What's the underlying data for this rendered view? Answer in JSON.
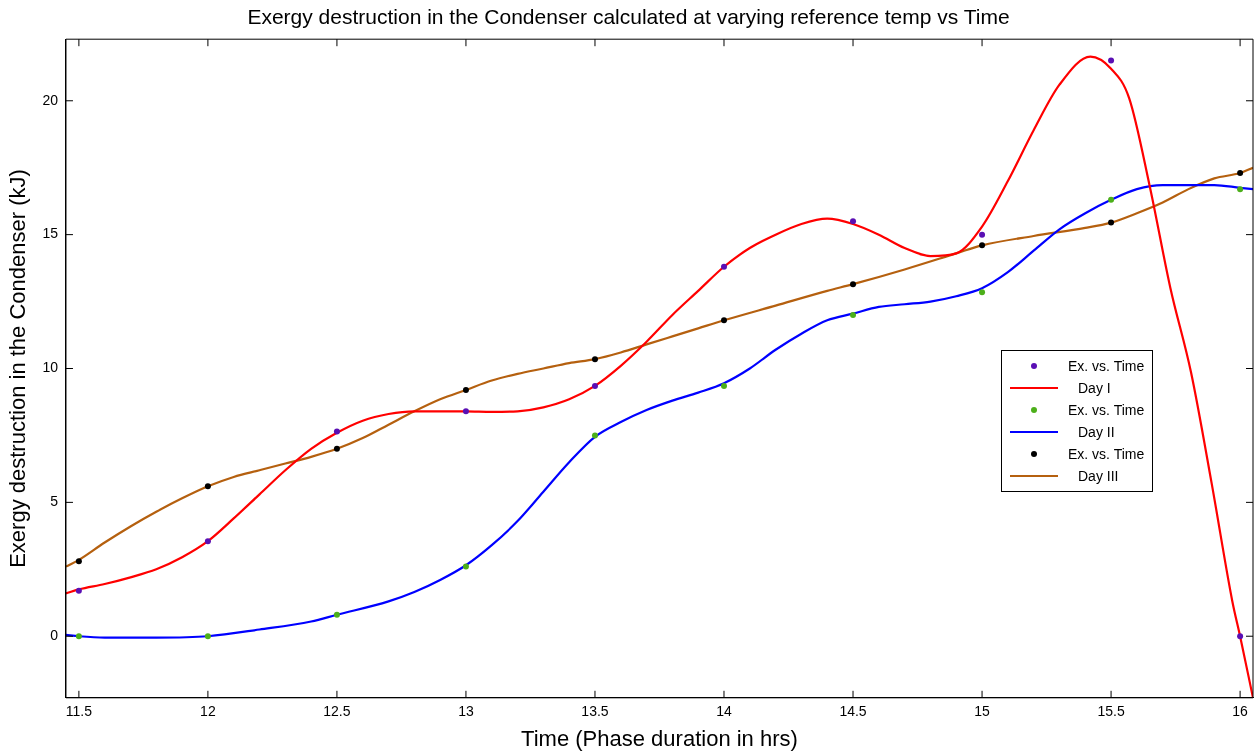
{
  "chart_data": {
    "type": "line",
    "title": "Exergy destruction in the Condenser calculated at varying reference temp vs Time",
    "xlabel": "Time (Phase duration in hrs)",
    "ylabel": "Exergy destruction in the Condenser (kJ)",
    "xlim": [
      11.45,
      16.05
    ],
    "ylim": [
      -2.3,
      22.3
    ],
    "xticks": [
      11.5,
      12,
      12.5,
      13,
      13.5,
      14,
      14.5,
      15,
      15.5,
      16
    ],
    "yticks": [
      0,
      5,
      10,
      15,
      20
    ],
    "grid": false,
    "legend": "right",
    "marker": "none",
    "line_style": "solid",
    "series": [
      {
        "name": "Ex. vs. Time",
        "type": "scatter",
        "marker": "circle",
        "color": "#5a0fb4",
        "x": [
          11.5,
          12,
          12.5,
          13,
          13.5,
          14,
          14.5,
          15,
          15.5,
          16
        ],
        "values": [
          1.7,
          3.55,
          7.65,
          8.4,
          9.35,
          13.8,
          15.5,
          15.0,
          21.5,
          0
        ]
      },
      {
        "name": "Day I",
        "color": "#ff0000",
        "x": [
          11.45,
          11.5,
          11.6,
          11.7,
          11.8,
          11.9,
          12,
          12.1,
          12.2,
          12.3,
          12.4,
          12.5,
          12.6,
          12.7,
          12.8,
          12.9,
          13,
          13.1,
          13.2,
          13.3,
          13.4,
          13.5,
          13.6,
          13.7,
          13.8,
          13.9,
          14,
          14.1,
          14.2,
          14.3,
          14.4,
          14.5,
          14.6,
          14.7,
          14.8,
          14.9,
          15,
          15.1,
          15.2,
          15.3,
          15.42,
          15.5,
          15.57,
          15.65,
          15.73,
          15.81,
          15.89,
          15.97,
          16,
          16.05
        ],
        "values": [
          1.6,
          1.75,
          1.95,
          2.2,
          2.5,
          2.95,
          3.55,
          4.4,
          5.3,
          6.2,
          7.0,
          7.6,
          8.05,
          8.3,
          8.4,
          8.4,
          8.4,
          8.38,
          8.4,
          8.55,
          8.85,
          9.35,
          10.1,
          11.0,
          12.0,
          12.9,
          13.8,
          14.5,
          15.0,
          15.4,
          15.6,
          15.4,
          15.0,
          14.5,
          14.2,
          14.3,
          15.3,
          17.0,
          18.9,
          20.6,
          21.65,
          21.2,
          20.1,
          16.8,
          13.0,
          9.85,
          5.7,
          1.3,
          0,
          -2.3
        ]
      },
      {
        "name": "Ex. vs. Time",
        "type": "scatter",
        "marker": "circle",
        "color": "#4caf1a",
        "x": [
          11.5,
          12,
          12.5,
          13,
          13.5,
          14,
          14.5,
          15,
          15.5,
          16
        ],
        "values": [
          0,
          0,
          0.8,
          2.6,
          7.5,
          9.35,
          12.0,
          12.85,
          16.3,
          16.7
        ]
      },
      {
        "name": "Day II",
        "color": "#0000ff",
        "x": [
          11.45,
          11.5,
          11.6,
          11.8,
          12,
          12.2,
          12.4,
          12.5,
          12.7,
          12.8,
          12.9,
          13,
          13.1,
          13.2,
          13.3,
          13.4,
          13.5,
          13.6,
          13.7,
          13.8,
          13.9,
          14,
          14.1,
          14.2,
          14.3,
          14.4,
          14.5,
          14.6,
          14.7,
          14.8,
          14.9,
          15,
          15.1,
          15.2,
          15.3,
          15.4,
          15.5,
          15.6,
          15.7,
          15.8,
          15.9,
          16,
          16.05
        ],
        "values": [
          0.05,
          0,
          -0.05,
          -0.05,
          0,
          0.25,
          0.55,
          0.8,
          1.3,
          1.65,
          2.1,
          2.65,
          3.4,
          4.3,
          5.4,
          6.5,
          7.45,
          8.0,
          8.45,
          8.8,
          9.1,
          9.45,
          10.0,
          10.7,
          11.3,
          11.8,
          12.05,
          12.3,
          12.4,
          12.5,
          12.7,
          13.0,
          13.6,
          14.4,
          15.2,
          15.8,
          16.3,
          16.7,
          16.85,
          16.85,
          16.85,
          16.75,
          16.7
        ]
      },
      {
        "name": "Ex. vs. Time",
        "type": "scatter",
        "marker": "circle",
        "color": "#000000",
        "x": [
          11.5,
          12,
          12.5,
          13,
          13.5,
          14,
          14.5,
          15,
          15.5,
          16
        ],
        "values": [
          2.8,
          5.6,
          7.0,
          9.2,
          10.35,
          11.8,
          13.15,
          14.6,
          15.45,
          17.3
        ]
      },
      {
        "name": "Day III",
        "color": "#b5600f",
        "x": [
          11.45,
          11.5,
          11.6,
          11.7,
          11.8,
          11.9,
          12,
          12.1,
          12.2,
          12.3,
          12.4,
          12.5,
          12.6,
          12.7,
          12.8,
          12.9,
          13,
          13.1,
          13.2,
          13.3,
          13.4,
          13.5,
          13.6,
          13.7,
          13.8,
          13.9,
          14,
          14.2,
          14.4,
          14.5,
          14.7,
          14.9,
          15,
          15.2,
          15.4,
          15.5,
          15.6,
          15.7,
          15.8,
          15.9,
          16,
          16.05
        ],
        "values": [
          2.6,
          2.85,
          3.5,
          4.1,
          4.65,
          5.15,
          5.6,
          5.95,
          6.2,
          6.45,
          6.7,
          7.0,
          7.4,
          7.9,
          8.4,
          8.85,
          9.2,
          9.55,
          9.8,
          10.0,
          10.2,
          10.35,
          10.6,
          10.9,
          11.2,
          11.5,
          11.8,
          12.35,
          12.9,
          13.15,
          13.7,
          14.3,
          14.6,
          14.95,
          15.25,
          15.45,
          15.8,
          16.2,
          16.7,
          17.1,
          17.3,
          17.5
        ]
      }
    ]
  }
}
